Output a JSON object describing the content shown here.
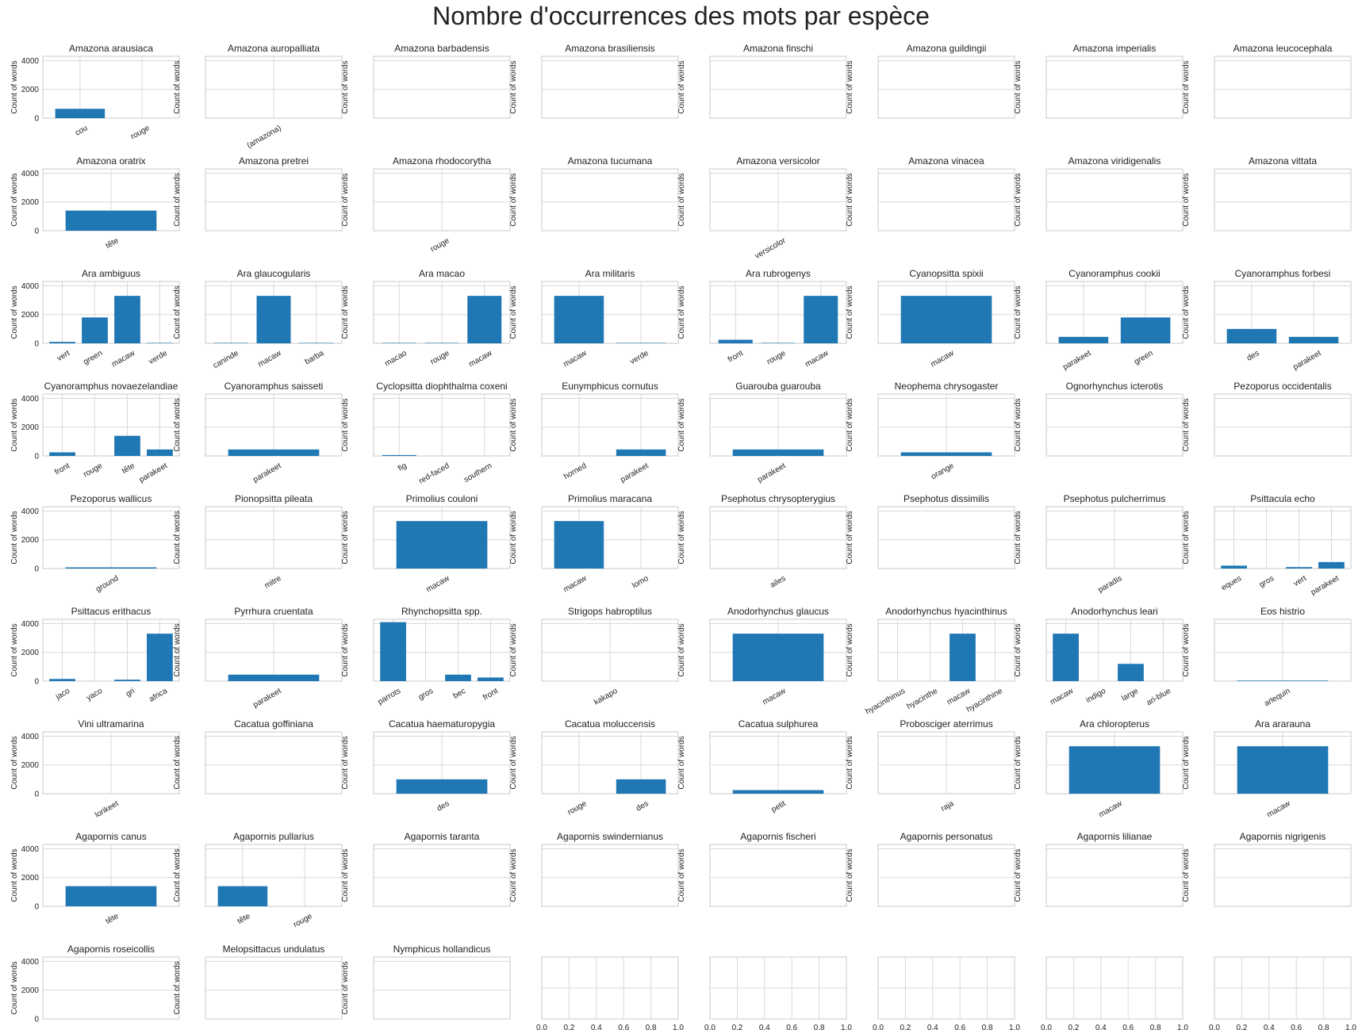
{
  "figure": {
    "title": "Nombre d'occurrences des mots par espèce",
    "bar_color": "#1f77b4",
    "grid_color": "#d8d8d8",
    "frame_color": "#c8c8c8"
  },
  "chart_data": [
    {
      "type": "bar",
      "title": "Amazona arausiaca",
      "ylabel": "Count of words",
      "ylim": [
        0,
        4300
      ],
      "yticks": [
        0,
        2000,
        4000
      ],
      "categories": [
        "cou",
        "rouge"
      ],
      "values": [
        650,
        0
      ]
    },
    {
      "type": "bar",
      "title": "Amazona auropalliata",
      "ylabel": "Count of words",
      "ylim": [
        0,
        4300
      ],
      "yticks": [],
      "categories": [
        "(amazona)"
      ],
      "values": [
        0
      ]
    },
    {
      "type": "bar",
      "title": "Amazona barbadensis",
      "ylabel": "Count of words",
      "ylim": [
        0,
        4300
      ],
      "yticks": [],
      "categories": [],
      "values": []
    },
    {
      "type": "bar",
      "title": "Amazona brasiliensis",
      "ylabel": "Count of words",
      "ylim": [
        0,
        4300
      ],
      "yticks": [],
      "categories": [],
      "values": []
    },
    {
      "type": "bar",
      "title": "Amazona finschi",
      "ylabel": "Count of words",
      "ylim": [
        0,
        4300
      ],
      "yticks": [],
      "categories": [],
      "values": []
    },
    {
      "type": "bar",
      "title": "Amazona guildingii",
      "ylabel": "Count of words",
      "ylim": [
        0,
        4300
      ],
      "yticks": [],
      "categories": [],
      "values": []
    },
    {
      "type": "bar",
      "title": "Amazona imperialis",
      "ylabel": "Count of words",
      "ylim": [
        0,
        4300
      ],
      "yticks": [],
      "categories": [],
      "values": []
    },
    {
      "type": "bar",
      "title": "Amazona leucocephala",
      "ylabel": "Count of words",
      "ylim": [
        0,
        4300
      ],
      "yticks": [],
      "categories": [],
      "values": []
    },
    {
      "type": "bar",
      "title": "Amazona oratrix",
      "ylabel": "Count of words",
      "ylim": [
        0,
        4300
      ],
      "yticks": [
        0,
        2000,
        4000
      ],
      "categories": [
        "tête"
      ],
      "values": [
        1400
      ]
    },
    {
      "type": "bar",
      "title": "Amazona pretrei",
      "ylabel": "Count of words",
      "ylim": [
        0,
        4300
      ],
      "yticks": [],
      "categories": [],
      "values": []
    },
    {
      "type": "bar",
      "title": "Amazona rhodocorytha",
      "ylabel": "Count of words",
      "ylim": [
        0,
        4300
      ],
      "yticks": [],
      "categories": [
        "rouge"
      ],
      "values": [
        0
      ]
    },
    {
      "type": "bar",
      "title": "Amazona tucumana",
      "ylabel": "Count of words",
      "ylim": [
        0,
        4300
      ],
      "yticks": [],
      "categories": [],
      "values": []
    },
    {
      "type": "bar",
      "title": "Amazona versicolor",
      "ylabel": "Count of words",
      "ylim": [
        0,
        4300
      ],
      "yticks": [],
      "categories": [
        "versicolor"
      ],
      "values": [
        0
      ]
    },
    {
      "type": "bar",
      "title": "Amazona vinacea",
      "ylabel": "Count of words",
      "ylim": [
        0,
        4300
      ],
      "yticks": [],
      "categories": [],
      "values": []
    },
    {
      "type": "bar",
      "title": "Amazona viridigenalis",
      "ylabel": "Count of words",
      "ylim": [
        0,
        4300
      ],
      "yticks": [],
      "categories": [],
      "values": []
    },
    {
      "type": "bar",
      "title": "Amazona vittata",
      "ylabel": "Count of words",
      "ylim": [
        0,
        4300
      ],
      "yticks": [],
      "categories": [],
      "values": []
    },
    {
      "type": "bar",
      "title": "Ara ambiguus",
      "ylabel": "Count of words",
      "ylim": [
        0,
        4300
      ],
      "yticks": [
        0,
        2000,
        4000
      ],
      "categories": [
        "vert",
        "green",
        "macaw",
        "verde"
      ],
      "values": [
        100,
        1800,
        3300,
        30
      ]
    },
    {
      "type": "bar",
      "title": "Ara glaucogularis",
      "ylabel": "Count of words",
      "ylim": [
        0,
        4300
      ],
      "yticks": [],
      "categories": [
        "caninde",
        "macaw",
        "barba"
      ],
      "values": [
        30,
        3300,
        30
      ]
    },
    {
      "type": "bar",
      "title": "Ara macao",
      "ylabel": "Count of words",
      "ylim": [
        0,
        4300
      ],
      "yticks": [],
      "categories": [
        "macao",
        "rouge",
        "macaw"
      ],
      "values": [
        30,
        30,
        3300
      ]
    },
    {
      "type": "bar",
      "title": "Ara militaris",
      "ylabel": "Count of words",
      "ylim": [
        0,
        4300
      ],
      "yticks": [],
      "categories": [
        "macaw",
        "verde"
      ],
      "values": [
        3300,
        30
      ]
    },
    {
      "type": "bar",
      "title": "Ara rubrogenys",
      "ylabel": "Count of words",
      "ylim": [
        0,
        4300
      ],
      "yticks": [],
      "categories": [
        "front",
        "rouge",
        "macaw"
      ],
      "values": [
        250,
        30,
        3300
      ]
    },
    {
      "type": "bar",
      "title": "Cyanopsitta spixii",
      "ylabel": "Count of words",
      "ylim": [
        0,
        4300
      ],
      "yticks": [],
      "categories": [
        "macaw"
      ],
      "values": [
        3300
      ]
    },
    {
      "type": "bar",
      "title": "Cyanoramphus cookii",
      "ylabel": "Count of words",
      "ylim": [
        0,
        4300
      ],
      "yticks": [],
      "categories": [
        "parakeet",
        "green"
      ],
      "values": [
        450,
        1800
      ]
    },
    {
      "type": "bar",
      "title": "Cyanoramphus forbesi",
      "ylabel": "Count of words",
      "ylim": [
        0,
        4300
      ],
      "yticks": [],
      "categories": [
        "des",
        "parakeet"
      ],
      "values": [
        1000,
        450
      ]
    },
    {
      "type": "bar",
      "title": "Cyanoramphus novaezelandiae",
      "ylabel": "Count of words",
      "ylim": [
        0,
        4300
      ],
      "yticks": [
        0,
        2000,
        4000
      ],
      "categories": [
        "front",
        "rouge",
        "tête",
        "parakeet"
      ],
      "values": [
        250,
        0,
        1400,
        450
      ]
    },
    {
      "type": "bar",
      "title": "Cyanoramphus saisseti",
      "ylabel": "Count of words",
      "ylim": [
        0,
        4300
      ],
      "yticks": [],
      "categories": [
        "parakeet"
      ],
      "values": [
        450
      ]
    },
    {
      "type": "bar",
      "title": "Cyclopsitta diophthalma coxeni",
      "ylabel": "Count of words",
      "ylim": [
        0,
        4300
      ],
      "yticks": [],
      "categories": [
        "fig",
        "red-faced",
        "southern"
      ],
      "values": [
        60,
        0,
        0
      ]
    },
    {
      "type": "bar",
      "title": "Eunymphicus cornutus",
      "ylabel": "Count of words",
      "ylim": [
        0,
        4300
      ],
      "yticks": [],
      "categories": [
        "horned",
        "parakeet"
      ],
      "values": [
        0,
        450
      ]
    },
    {
      "type": "bar",
      "title": "Guarouba guarouba",
      "ylabel": "Count of words",
      "ylim": [
        0,
        4300
      ],
      "yticks": [],
      "categories": [
        "parakeet"
      ],
      "values": [
        450
      ]
    },
    {
      "type": "bar",
      "title": "Neophema chrysogaster",
      "ylabel": "Count of words",
      "ylim": [
        0,
        4300
      ],
      "yticks": [],
      "categories": [
        "orange"
      ],
      "values": [
        250
      ]
    },
    {
      "type": "bar",
      "title": "Ognorhynchus icterotis",
      "ylabel": "Count of words",
      "ylim": [
        0,
        4300
      ],
      "yticks": [],
      "categories": [],
      "values": []
    },
    {
      "type": "bar",
      "title": "Pezoporus occidentalis",
      "ylabel": "Count of words",
      "ylim": [
        0,
        4300
      ],
      "yticks": [],
      "categories": [],
      "values": []
    },
    {
      "type": "bar",
      "title": "Pezoporus wallicus",
      "ylabel": "Count of words",
      "ylim": [
        0,
        4300
      ],
      "yticks": [
        0,
        2000,
        4000
      ],
      "categories": [
        "ground"
      ],
      "values": [
        80
      ]
    },
    {
      "type": "bar",
      "title": "Pionopsitta pileata",
      "ylabel": "Count of words",
      "ylim": [
        0,
        4300
      ],
      "yticks": [],
      "categories": [
        "mitre"
      ],
      "values": [
        0
      ]
    },
    {
      "type": "bar",
      "title": "Primolius couloni",
      "ylabel": "Count of words",
      "ylim": [
        0,
        4300
      ],
      "yticks": [],
      "categories": [
        "macaw"
      ],
      "values": [
        3300
      ]
    },
    {
      "type": "bar",
      "title": "Primolius maracana",
      "ylabel": "Count of words",
      "ylim": [
        0,
        4300
      ],
      "yticks": [],
      "categories": [
        "macaw",
        "lomo"
      ],
      "values": [
        3300,
        0
      ]
    },
    {
      "type": "bar",
      "title": "Psephotus chrysopterygius",
      "ylabel": "Count of words",
      "ylim": [
        0,
        4300
      ],
      "yticks": [],
      "categories": [
        "ailes"
      ],
      "values": [
        0
      ]
    },
    {
      "type": "bar",
      "title": "Psephotus dissimilis",
      "ylabel": "Count of words",
      "ylim": [
        0,
        4300
      ],
      "yticks": [],
      "categories": [],
      "values": []
    },
    {
      "type": "bar",
      "title": "Psephotus pulcherrimus",
      "ylabel": "Count of words",
      "ylim": [
        0,
        4300
      ],
      "yticks": [],
      "categories": [
        "paradis"
      ],
      "values": [
        0
      ]
    },
    {
      "type": "bar",
      "title": "Psittacula echo",
      "ylabel": "Count of words",
      "ylim": [
        0,
        4300
      ],
      "yticks": [],
      "categories": [
        "eques",
        "gros",
        "vert",
        "parakeet"
      ],
      "values": [
        200,
        0,
        100,
        450
      ]
    },
    {
      "type": "bar",
      "title": "Psittacus erithacus",
      "ylabel": "Count of words",
      "ylim": [
        0,
        4300
      ],
      "yticks": [
        0,
        2000,
        4000
      ],
      "categories": [
        "jaco",
        "yaco",
        "gri",
        "africa"
      ],
      "values": [
        150,
        0,
        100,
        3300
      ]
    },
    {
      "type": "bar",
      "title": "Pyrrhura cruentata",
      "ylabel": "Count of words",
      "ylim": [
        0,
        4300
      ],
      "yticks": [],
      "categories": [
        "parakeet"
      ],
      "values": [
        450
      ]
    },
    {
      "type": "bar",
      "title": "Rhynchopsitta spp.",
      "ylabel": "Count of words",
      "ylim": [
        0,
        4300
      ],
      "yticks": [],
      "categories": [
        "parrots",
        "gros",
        "bec",
        "front"
      ],
      "values": [
        4100,
        0,
        450,
        250
      ]
    },
    {
      "type": "bar",
      "title": "Strigops habroptilus",
      "ylabel": "Count of words",
      "ylim": [
        0,
        4300
      ],
      "yticks": [],
      "categories": [
        "kakapo"
      ],
      "values": [
        0
      ]
    },
    {
      "type": "bar",
      "title": "Anodorhynchus glaucus",
      "ylabel": "Count of words",
      "ylim": [
        0,
        4300
      ],
      "yticks": [],
      "categories": [
        "macaw"
      ],
      "values": [
        3300
      ]
    },
    {
      "type": "bar",
      "title": "Anodorhynchus hyacinthinus",
      "ylabel": "Count of words",
      "ylim": [
        0,
        4300
      ],
      "yticks": [],
      "categories": [
        "hyacinthinus",
        "hyacinthe",
        "macaw",
        "hyacinthine"
      ],
      "values": [
        0,
        0,
        3300,
        0
      ]
    },
    {
      "type": "bar",
      "title": "Anodorhynchus leari",
      "ylabel": "Count of words",
      "ylim": [
        0,
        4300
      ],
      "yticks": [],
      "categories": [
        "macaw",
        "indigo",
        "large",
        "ari-blue"
      ],
      "values": [
        3300,
        0,
        1200,
        0
      ]
    },
    {
      "type": "bar",
      "title": "Eos histrio",
      "ylabel": "Count of words",
      "ylim": [
        0,
        4300
      ],
      "yticks": [],
      "categories": [
        "arlequin"
      ],
      "values": [
        40
      ]
    },
    {
      "type": "bar",
      "title": "Vini ultramarina",
      "ylabel": "Count of words",
      "ylim": [
        0,
        4300
      ],
      "yticks": [
        0,
        2000,
        4000
      ],
      "categories": [
        "lorikeet"
      ],
      "values": [
        0
      ]
    },
    {
      "type": "bar",
      "title": "Cacatua goffiniana",
      "ylabel": "Count of words",
      "ylim": [
        0,
        4300
      ],
      "yticks": [],
      "categories": [],
      "values": []
    },
    {
      "type": "bar",
      "title": "Cacatua haematuropygia",
      "ylabel": "Count of words",
      "ylim": [
        0,
        4300
      ],
      "yticks": [],
      "categories": [
        "des"
      ],
      "values": [
        1000
      ]
    },
    {
      "type": "bar",
      "title": "Cacatua moluccensis",
      "ylabel": "Count of words",
      "ylim": [
        0,
        4300
      ],
      "yticks": [],
      "categories": [
        "rouge",
        "des"
      ],
      "values": [
        0,
        1000
      ]
    },
    {
      "type": "bar",
      "title": "Cacatua sulphurea",
      "ylabel": "Count of words",
      "ylim": [
        0,
        4300
      ],
      "yticks": [],
      "categories": [
        "petit"
      ],
      "values": [
        250
      ]
    },
    {
      "type": "bar",
      "title": "Probosciger aterrimus",
      "ylabel": "Count of words",
      "ylim": [
        0,
        4300
      ],
      "yticks": [],
      "categories": [
        "raja"
      ],
      "values": [
        0
      ]
    },
    {
      "type": "bar",
      "title": "Ara chloropterus",
      "ylabel": "Count of words",
      "ylim": [
        0,
        4300
      ],
      "yticks": [],
      "categories": [
        "macaw"
      ],
      "values": [
        3300
      ]
    },
    {
      "type": "bar",
      "title": "Ara ararauna",
      "ylabel": "Count of words",
      "ylim": [
        0,
        4300
      ],
      "yticks": [],
      "categories": [
        "macaw"
      ],
      "values": [
        3300
      ]
    },
    {
      "type": "bar",
      "title": "Agapornis canus",
      "ylabel": "Count of words",
      "ylim": [
        0,
        4300
      ],
      "yticks": [
        0,
        2000,
        4000
      ],
      "categories": [
        "tête"
      ],
      "values": [
        1400
      ]
    },
    {
      "type": "bar",
      "title": "Agapornis pullarius",
      "ylabel": "Count of words",
      "ylim": [
        0,
        4300
      ],
      "yticks": [],
      "categories": [
        "tête",
        "rouge"
      ],
      "values": [
        1400,
        0
      ]
    },
    {
      "type": "bar",
      "title": "Agapornis taranta",
      "ylabel": "Count of words",
      "ylim": [
        0,
        4300
      ],
      "yticks": [],
      "categories": [],
      "values": []
    },
    {
      "type": "bar",
      "title": "Agapornis swindernianus",
      "ylabel": "Count of words",
      "ylim": [
        0,
        4300
      ],
      "yticks": [],
      "categories": [],
      "values": []
    },
    {
      "type": "bar",
      "title": "Agapornis fischeri",
      "ylabel": "Count of words",
      "ylim": [
        0,
        4300
      ],
      "yticks": [],
      "categories": [],
      "values": []
    },
    {
      "type": "bar",
      "title": "Agapornis personatus",
      "ylabel": "Count of words",
      "ylim": [
        0,
        4300
      ],
      "yticks": [],
      "categories": [],
      "values": []
    },
    {
      "type": "bar",
      "title": "Agapornis lilianae",
      "ylabel": "Count of words",
      "ylim": [
        0,
        4300
      ],
      "yticks": [],
      "categories": [],
      "values": []
    },
    {
      "type": "bar",
      "title": "Agapornis nigrigenis",
      "ylabel": "Count of words",
      "ylim": [
        0,
        4300
      ],
      "yticks": [],
      "categories": [],
      "values": []
    },
    {
      "type": "bar",
      "title": "Agapornis roseicollis",
      "ylabel": "Count of words",
      "ylim": [
        0,
        4300
      ],
      "yticks": [
        0,
        2000,
        4000
      ],
      "categories": [],
      "values": []
    },
    {
      "type": "bar",
      "title": "Melopsittacus undulatus",
      "ylabel": "Count of words",
      "ylim": [
        0,
        4300
      ],
      "yticks": [],
      "categories": [],
      "values": []
    },
    {
      "type": "bar",
      "title": "Nymphicus hollandicus",
      "ylabel": "Count of words",
      "ylim": [
        0,
        4300
      ],
      "yticks": [],
      "categories": [],
      "values": []
    },
    {
      "type": "empty",
      "title": "",
      "ylabel": "",
      "ylim": [
        0,
        1
      ],
      "xlim": [
        0,
        1
      ],
      "xticks": [
        "0.0",
        "0.2",
        "0.4",
        "0.6",
        "0.8",
        "1.0"
      ]
    },
    {
      "type": "empty",
      "title": "",
      "ylabel": "",
      "ylim": [
        0,
        1
      ],
      "xlim": [
        0,
        1
      ],
      "xticks": [
        "0.0",
        "0.2",
        "0.4",
        "0.6",
        "0.8",
        "1.0"
      ]
    },
    {
      "type": "empty",
      "title": "",
      "ylabel": "",
      "ylim": [
        0,
        1
      ],
      "xlim": [
        0,
        1
      ],
      "xticks": [
        "0.0",
        "0.2",
        "0.4",
        "0.6",
        "0.8",
        "1.0"
      ]
    },
    {
      "type": "empty",
      "title": "",
      "ylabel": "",
      "ylim": [
        0,
        1
      ],
      "xlim": [
        0,
        1
      ],
      "xticks": [
        "0.0",
        "0.2",
        "0.4",
        "0.6",
        "0.8",
        "1.0"
      ]
    },
    {
      "type": "empty",
      "title": "",
      "ylabel": "",
      "ylim": [
        0,
        1
      ],
      "xlim": [
        0,
        1
      ],
      "xticks": [
        "0.0",
        "0.2",
        "0.4",
        "0.6",
        "0.8",
        "1.0"
      ]
    }
  ]
}
